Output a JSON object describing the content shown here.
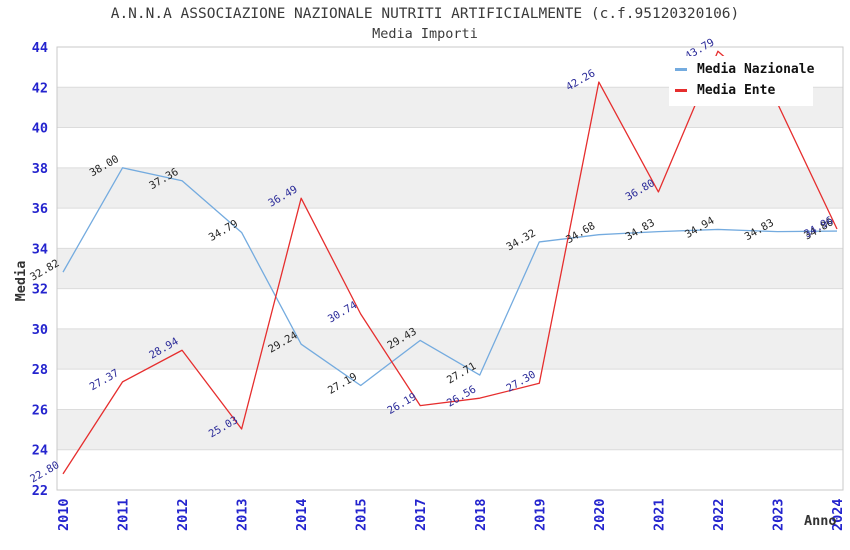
{
  "chart_data": {
    "type": "line",
    "title": "A.N.N.A ASSOCIAZIONE NAZIONALE NUTRITI ARTIFICIALMENTE (c.f.95120320106)",
    "subtitle": "Media Importi",
    "xlabel": "Anno",
    "ylabel": "Media",
    "categories": [
      "2010",
      "2011",
      "2012",
      "2013",
      "2014",
      "2015",
      "2017",
      "2018",
      "2019",
      "2020",
      "2021",
      "2022",
      "2023",
      "2024"
    ],
    "series": [
      {
        "name": "Media Nazionale",
        "color": "#74ABDF",
        "label_color": "#262626",
        "values": [
          32.82,
          38.0,
          37.36,
          34.79,
          29.24,
          27.19,
          29.43,
          27.71,
          34.32,
          34.68,
          34.83,
          34.94,
          34.83,
          34.86
        ],
        "labels": [
          "32.82",
          "38.00",
          "37.36",
          "34.79",
          "29.24",
          "27.19",
          "29.43",
          "27.71",
          "34.32",
          "34.68",
          "34.83",
          "34.94",
          "34.83",
          "34.86"
        ]
      },
      {
        "name": "Media Ente",
        "color": "#E62E2E",
        "label_color": "#2B2B99",
        "values": [
          22.8,
          27.37,
          28.94,
          25.03,
          36.49,
          30.74,
          26.19,
          26.56,
          27.3,
          42.26,
          36.8,
          43.79,
          41.2,
          34.96
        ],
        "labels": [
          "22.80",
          "27.37",
          "28.94",
          "25.03",
          "36.49",
          "30.74",
          "26.19",
          "26.56",
          "27.30",
          "42.26",
          "36.80",
          "43.79",
          null,
          "34.96"
        ]
      }
    ],
    "ylim": [
      22,
      44
    ],
    "ytick_step": 2,
    "grid": "horizontal",
    "alternating_bands": [
      [
        24,
        26
      ],
      [
        28,
        30
      ],
      [
        32,
        34
      ],
      [
        36,
        38
      ],
      [
        40,
        42
      ]
    ],
    "legend_position": "top-right",
    "style": {
      "band_color": "#EFEFEF",
      "grid_color": "#DCDCDC",
      "border_color": "#C9C9C9",
      "tick_color": "#2424CE",
      "line_width": 1.3
    }
  }
}
